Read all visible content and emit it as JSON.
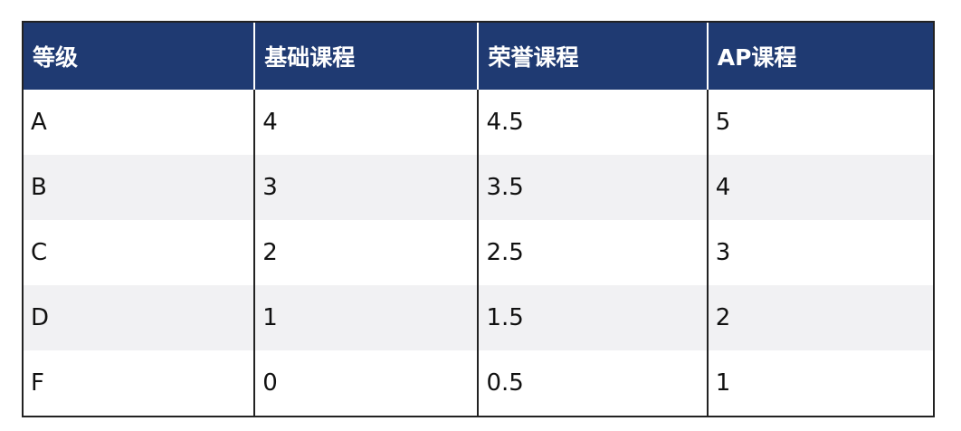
{
  "table": {
    "headers": [
      "等级",
      "基础课程",
      "荣誉课程",
      "AP课程"
    ],
    "rows": [
      [
        "A",
        "4",
        "4.5",
        "5"
      ],
      [
        "B",
        "3",
        "3.5",
        "4"
      ],
      [
        "C",
        "2",
        "2.5",
        "3"
      ],
      [
        "D",
        "1",
        "1.5",
        "2"
      ],
      [
        "F",
        "0",
        "0.5",
        "1"
      ]
    ]
  },
  "colors": {
    "header_bg": "#1f3a72",
    "header_text": "#ffffff",
    "row_alt_bg": "#f1f1f3",
    "border": "#222222"
  }
}
